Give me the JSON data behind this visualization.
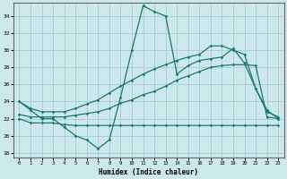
{
  "xlabel": "Humidex (Indice chaleur)",
  "bg_color": "#cce8ea",
  "line_color": "#1a7a6e",
  "grid_color": "#aad0d4",
  "xlim": [
    -0.5,
    23.5
  ],
  "ylim": [
    17.5,
    35.5
  ],
  "yticks": [
    18,
    20,
    22,
    24,
    26,
    28,
    30,
    32,
    34
  ],
  "xticks": [
    0,
    1,
    2,
    3,
    4,
    5,
    6,
    7,
    8,
    9,
    10,
    11,
    12,
    13,
    14,
    15,
    16,
    17,
    18,
    19,
    20,
    21,
    22,
    23
  ],
  "series": [
    {
      "x": [
        0,
        1,
        2,
        3,
        4,
        5,
        6,
        7,
        8,
        9,
        10,
        11,
        12,
        13,
        14,
        15,
        16,
        17,
        18,
        19,
        20,
        21,
        22,
        23
      ],
      "y": [
        24,
        23,
        22,
        22,
        21,
        20,
        19.5,
        18.5,
        19.5,
        24.5,
        30,
        35.2,
        34.5,
        34.0,
        27.2,
        28.2,
        28.8,
        29.0,
        29.2,
        30.2,
        28.5,
        25.5,
        23.0,
        22.0
      ]
    },
    {
      "x": [
        0,
        1,
        2,
        3,
        4,
        5,
        6,
        7,
        8,
        9,
        10,
        11,
        12,
        13,
        14,
        15,
        16,
        17,
        18,
        19,
        20,
        21,
        22,
        23
      ],
      "y": [
        22.0,
        21.5,
        21.5,
        21.5,
        21.3,
        21.2,
        21.2,
        21.2,
        21.2,
        21.2,
        21.2,
        21.2,
        21.2,
        21.2,
        21.2,
        21.2,
        21.2,
        21.2,
        21.2,
        21.2,
        21.2,
        21.2,
        21.2,
        21.2
      ]
    },
    {
      "x": [
        0,
        1,
        2,
        3,
        4,
        5,
        6,
        7,
        8,
        9,
        10,
        11,
        12,
        13,
        14,
        15,
        16,
        17,
        18,
        19,
        20,
        21,
        22,
        23
      ],
      "y": [
        22.5,
        22.2,
        22.2,
        22.2,
        22.2,
        22.4,
        22.6,
        22.8,
        23.2,
        23.8,
        24.2,
        24.8,
        25.2,
        25.8,
        26.5,
        27.0,
        27.5,
        28.0,
        28.2,
        28.3,
        28.3,
        28.2,
        22.2,
        22.0
      ]
    },
    {
      "x": [
        0,
        1,
        2,
        3,
        4,
        5,
        6,
        7,
        8,
        9,
        10,
        11,
        12,
        13,
        14,
        15,
        16,
        17,
        18,
        19,
        20,
        21,
        22,
        23
      ],
      "y": [
        24.0,
        23.2,
        22.8,
        22.8,
        22.8,
        23.2,
        23.7,
        24.2,
        25.0,
        25.8,
        26.5,
        27.2,
        27.8,
        28.3,
        28.8,
        29.2,
        29.5,
        30.5,
        30.5,
        30.0,
        29.5,
        25.5,
        22.8,
        22.2
      ]
    }
  ]
}
